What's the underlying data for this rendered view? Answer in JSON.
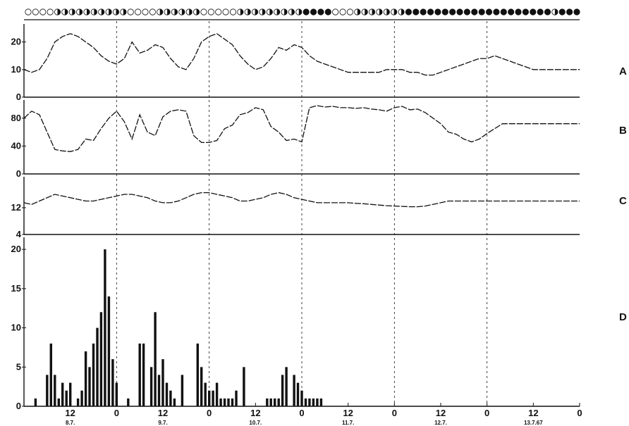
{
  "chart_data": {
    "type": "multi-panel",
    "x_axis": {
      "unit": "hour",
      "hour_ticks": [
        "12",
        "0",
        "12",
        "0",
        "12",
        "0",
        "12",
        "0",
        "12",
        "0",
        "12",
        "0"
      ],
      "date_labels": [
        "8.7.",
        "9.7.",
        "10.7.",
        "11.7.",
        "12.7.",
        "13.7.67"
      ],
      "day_separators_dashed": true
    },
    "panels": [
      {
        "id": "A",
        "type": "line",
        "label": "A",
        "ylim": [
          0,
          25
        ],
        "y_ticks": [
          "0",
          "10",
          "20"
        ],
        "x": [
          0,
          2,
          4,
          6,
          8,
          10,
          12,
          14,
          16,
          18,
          20,
          22,
          24,
          26,
          28,
          30,
          32,
          34,
          36,
          38,
          40,
          42,
          44,
          46,
          48,
          50,
          52,
          54,
          56,
          58,
          60,
          62,
          64,
          66,
          68,
          70,
          72,
          74,
          76,
          78,
          80,
          82,
          84,
          86,
          88,
          90,
          92,
          94,
          96,
          98,
          100,
          102,
          104,
          106,
          108,
          110,
          112,
          114,
          116,
          118,
          120,
          122,
          124,
          126,
          128,
          130,
          132,
          134,
          136,
          138,
          140,
          142,
          144
        ],
        "y": [
          10,
          9,
          10,
          14,
          20,
          22,
          23,
          22,
          20,
          18,
          15,
          13,
          12,
          14,
          20,
          16,
          17,
          19,
          18,
          14,
          11,
          10,
          14,
          20,
          22,
          23,
          21,
          19,
          15,
          12,
          10,
          11,
          14,
          18,
          17,
          19,
          18,
          15,
          13,
          12,
          11,
          10,
          9,
          9,
          9,
          9,
          9,
          10,
          10,
          10,
          9,
          9,
          8,
          8,
          9,
          10,
          11,
          12,
          13,
          14,
          14,
          15,
          14,
          13,
          12,
          11,
          10,
          10,
          10,
          10,
          10,
          10,
          10
        ]
      },
      {
        "id": "B",
        "type": "line",
        "label": "B",
        "ylim": [
          0,
          100
        ],
        "y_ticks": [
          "0",
          "40",
          "80"
        ],
        "x": [
          0,
          2,
          4,
          6,
          8,
          10,
          12,
          14,
          16,
          18,
          20,
          22,
          24,
          26,
          28,
          30,
          32,
          34,
          36,
          38,
          40,
          42,
          44,
          46,
          48,
          50,
          52,
          54,
          56,
          58,
          60,
          62,
          64,
          66,
          68,
          70,
          72,
          74,
          76,
          78,
          80,
          82,
          84,
          86,
          88,
          90,
          92,
          94,
          96,
          98,
          100,
          102,
          104,
          106,
          108,
          110,
          112,
          114,
          116,
          118,
          120,
          122,
          124,
          126,
          128,
          130,
          132,
          134,
          136,
          138,
          140,
          142,
          144
        ],
        "y": [
          80,
          90,
          85,
          60,
          35,
          33,
          32,
          35,
          50,
          48,
          65,
          80,
          90,
          75,
          50,
          85,
          60,
          55,
          82,
          90,
          92,
          90,
          55,
          45,
          45,
          48,
          65,
          70,
          85,
          88,
          95,
          92,
          68,
          60,
          48,
          50,
          46,
          95,
          98,
          96,
          97,
          95,
          95,
          94,
          95,
          93,
          92,
          90,
          95,
          97,
          92,
          93,
          88,
          80,
          72,
          60,
          57,
          50,
          46,
          50,
          58,
          65,
          72,
          72,
          72,
          72,
          72,
          72,
          72,
          72,
          72,
          72,
          72
        ]
      },
      {
        "id": "C",
        "type": "line",
        "label": "C",
        "ylim": [
          4,
          20
        ],
        "y_ticks": [
          "4",
          "12"
        ],
        "x": [
          0,
          2,
          4,
          6,
          8,
          10,
          12,
          14,
          16,
          18,
          20,
          22,
          24,
          26,
          28,
          30,
          32,
          34,
          36,
          38,
          40,
          42,
          44,
          46,
          48,
          50,
          52,
          54,
          56,
          58,
          60,
          62,
          64,
          66,
          68,
          70,
          72,
          74,
          76,
          78,
          80,
          82,
          84,
          86,
          88,
          90,
          92,
          94,
          96,
          98,
          100,
          102,
          104,
          106,
          108,
          110,
          112,
          114,
          116,
          118,
          120,
          122,
          124,
          126,
          128,
          130,
          132,
          134,
          136,
          138,
          140,
          142,
          144
        ],
        "y": [
          13.5,
          13,
          14,
          15,
          16,
          15.5,
          15,
          14.5,
          14,
          14,
          14.5,
          15,
          15.5,
          16,
          16,
          15.5,
          15,
          14,
          13.5,
          13.5,
          14,
          15,
          16,
          16.5,
          16.5,
          16,
          15.5,
          15,
          14,
          14,
          14.5,
          15,
          16,
          16.5,
          16,
          15,
          14.5,
          14,
          13.5,
          13.5,
          13.5,
          13.5,
          13.5,
          13.3,
          13.2,
          13,
          12.8,
          12.6,
          12.5,
          12.4,
          12.3,
          12.3,
          12.5,
          13,
          13.5,
          14,
          14,
          14,
          14,
          14,
          14,
          14,
          14,
          14,
          14,
          14,
          14,
          14,
          14,
          14,
          14,
          14,
          14
        ]
      },
      {
        "id": "D",
        "type": "bar",
        "label": "D",
        "ylim": [
          0,
          21
        ],
        "y_ticks": [
          "0",
          "5",
          "10",
          "15",
          "20"
        ],
        "bar_hours": [
          3,
          6,
          7,
          8,
          9,
          10,
          11,
          12,
          14,
          15,
          16,
          17,
          18,
          19,
          20,
          21,
          22,
          23,
          24,
          27,
          30,
          31,
          33,
          34,
          35,
          36,
          37,
          38,
          39,
          41,
          45,
          46,
          47,
          48,
          49,
          50,
          51,
          52,
          53,
          54,
          55,
          57,
          63,
          64,
          65,
          66,
          67,
          68,
          70,
          71,
          72,
          73,
          74,
          75,
          76,
          77
        ],
        "values": [
          1,
          4,
          8,
          4,
          1,
          3,
          2,
          3,
          1,
          2,
          7,
          5,
          8,
          10,
          12,
          20,
          14,
          6,
          3,
          1,
          8,
          8,
          5,
          12,
          4,
          6,
          3,
          2,
          1,
          4,
          8,
          5,
          3,
          2,
          2,
          3,
          1,
          1,
          1,
          1,
          2,
          5,
          1,
          1,
          1,
          1,
          4,
          5,
          4,
          3,
          2,
          1,
          1,
          1,
          1,
          1
        ]
      }
    ]
  },
  "activity_markers": {
    "description_hidden": "",
    "states": [
      "l",
      "l",
      "l",
      "l",
      "h",
      "h",
      "h",
      "h",
      "h",
      "h",
      "h",
      "h",
      "h",
      "h",
      "l",
      "l",
      "l",
      "l",
      "h",
      "h",
      "h",
      "h",
      "h",
      "h",
      "l",
      "l",
      "l",
      "l",
      "l",
      "h",
      "h",
      "h",
      "h",
      "h",
      "h",
      "h",
      "h",
      "h",
      "d",
      "d",
      "d",
      "d",
      "l",
      "l",
      "l",
      "h",
      "h",
      "h",
      "h",
      "h",
      "h",
      "h",
      "d",
      "d",
      "d",
      "d",
      "d",
      "d",
      "d",
      "d",
      "d",
      "d",
      "d",
      "d",
      "d",
      "d",
      "d",
      "d",
      "d",
      "d",
      "d",
      "d",
      "h",
      "d",
      "d",
      "d"
    ]
  },
  "colors": {
    "ink": "#111111",
    "background": "#ffffff"
  }
}
